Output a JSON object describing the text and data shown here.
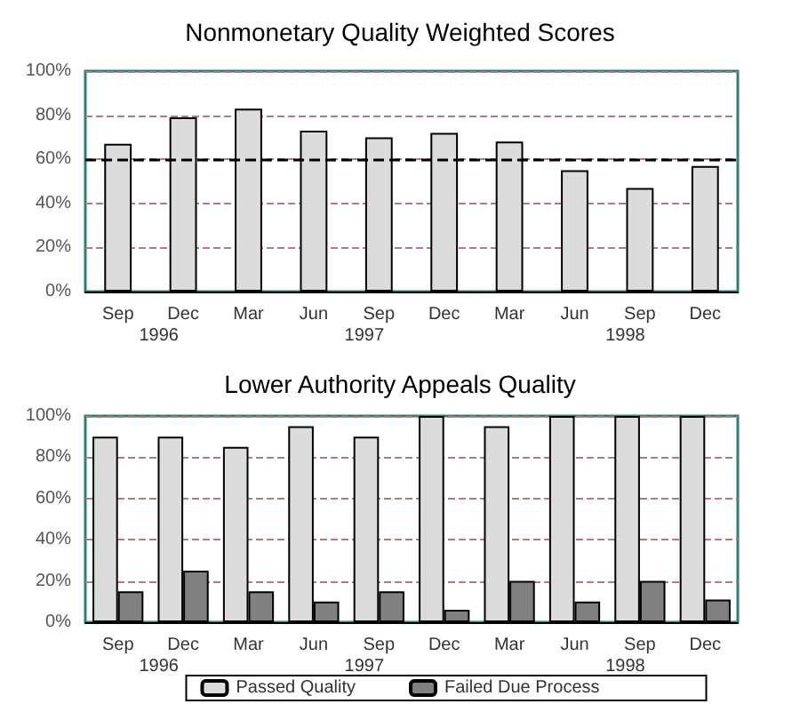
{
  "chart_data": [
    {
      "type": "bar",
      "title": "Nonmonetary Quality Weighted Scores",
      "categories": [
        "Sep",
        "Dec",
        "Mar",
        "Jun",
        "Sep",
        "Dec",
        "Mar",
        "Jun",
        "Sep",
        "Dec"
      ],
      "series": [
        {
          "color": "#dcdcdc",
          "values": [
            67,
            79,
            83,
            73,
            70,
            72,
            68,
            55,
            47,
            57
          ]
        }
      ],
      "ylim": [
        0,
        100
      ],
      "yticks": [
        {
          "value": 0,
          "label": "0%"
        },
        {
          "value": 20,
          "label": "20%"
        },
        {
          "value": 40,
          "label": "40%"
        },
        {
          "value": 60,
          "label": "60%"
        },
        {
          "value": 80,
          "label": "80%"
        },
        {
          "value": 100,
          "label": "100%"
        }
      ],
      "grid": "y",
      "legend": false,
      "ref_lines": [
        {
          "axis": "y",
          "value": 60,
          "color": "#000000",
          "line_style": "dashed"
        }
      ],
      "annotations": [
        "1996",
        "1997",
        "1998"
      ]
    },
    {
      "type": "bar",
      "title": "Lower Authority Appeals Quality",
      "categories": [
        "Sep",
        "Dec",
        "Mar",
        "Jun",
        "Sep",
        "Dec",
        "Mar",
        "Jun",
        "Sep",
        "Dec"
      ],
      "series": [
        {
          "name": "Passed Quality",
          "color": "#dcdcdc",
          "values": [
            90,
            90,
            85,
            95,
            90,
            100,
            95,
            100,
            100,
            100
          ]
        },
        {
          "name": "Failed Due Process",
          "color": "#808080",
          "values": [
            15,
            25,
            15,
            10,
            15,
            6,
            20,
            10,
            20,
            11
          ]
        }
      ],
      "ylim": [
        0,
        100
      ],
      "yticks": [
        {
          "value": 0,
          "label": "0%"
        },
        {
          "value": 20,
          "label": "20%"
        },
        {
          "value": 40,
          "label": "40%"
        },
        {
          "value": 60,
          "label": "60%"
        },
        {
          "value": 80,
          "label": "80%"
        },
        {
          "value": 100,
          "label": "100%"
        }
      ],
      "grid": "y",
      "legend": "bottom",
      "annotations": [
        "1996",
        "1997",
        "1998"
      ]
    }
  ]
}
